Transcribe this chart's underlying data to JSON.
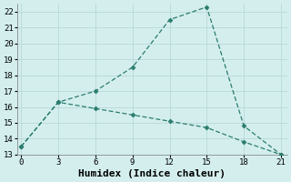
{
  "line1_x": [
    0,
    3,
    6,
    9,
    12,
    15,
    18,
    21
  ],
  "line1_y": [
    13.5,
    16.3,
    17.0,
    18.5,
    21.5,
    22.3,
    14.8,
    13.0
  ],
  "line2_x": [
    0,
    3,
    6,
    9,
    12,
    15,
    18,
    21
  ],
  "line2_y": [
    13.5,
    16.3,
    15.9,
    15.5,
    15.1,
    14.7,
    13.8,
    13.0
  ],
  "color": "#2a7d6e",
  "xlabel": "Humidex (Indice chaleur)",
  "xlim": [
    -0.3,
    21.5
  ],
  "ylim": [
    13,
    22.5
  ],
  "xticks": [
    0,
    3,
    6,
    9,
    12,
    15,
    18,
    21
  ],
  "yticks": [
    13,
    14,
    15,
    16,
    17,
    18,
    19,
    20,
    21,
    22
  ],
  "bg_color": "#d4eeee",
  "grid_color": "#b8d8d8",
  "marker": "D",
  "markersize": 2.5,
  "linewidth": 0.9,
  "xlabel_fontsize": 8,
  "tick_fontsize": 6.5,
  "font_family": "monospace"
}
